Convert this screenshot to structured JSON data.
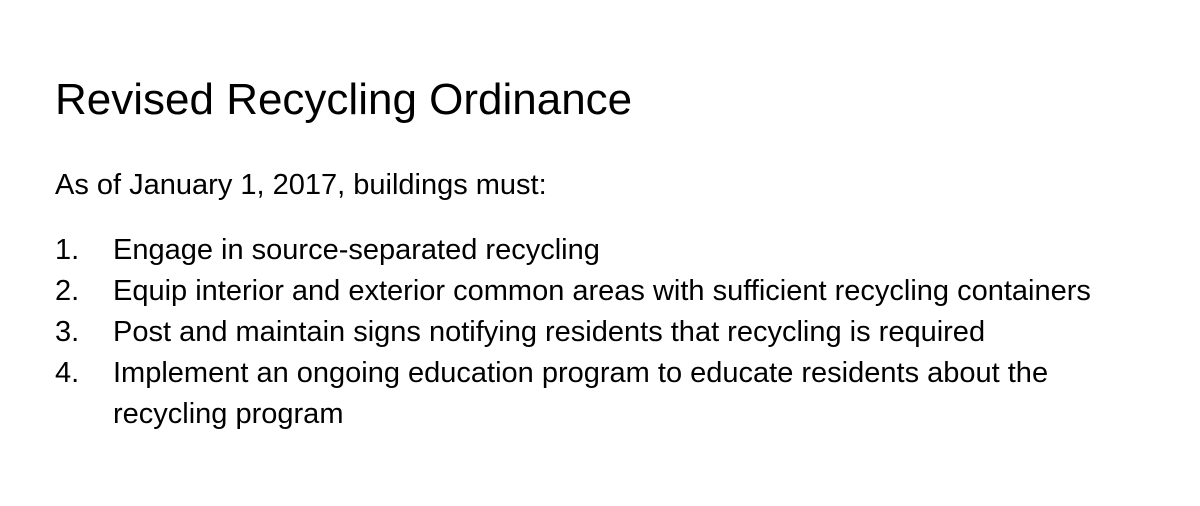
{
  "document": {
    "title": "Revised Recycling Ordinance",
    "intro": "As of January 1, 2017, buildings must:",
    "items": [
      {
        "number": "1.",
        "text": "Engage in source-separated recycling"
      },
      {
        "number": "2.",
        "text": "Equip interior and exterior common areas with sufficient recycling containers"
      },
      {
        "number": "3.",
        "text": "Post and maintain signs notifying residents that recycling is required"
      },
      {
        "number": "4.",
        "text": "Implement an ongoing education program to educate residents about the recycling program"
      }
    ]
  }
}
